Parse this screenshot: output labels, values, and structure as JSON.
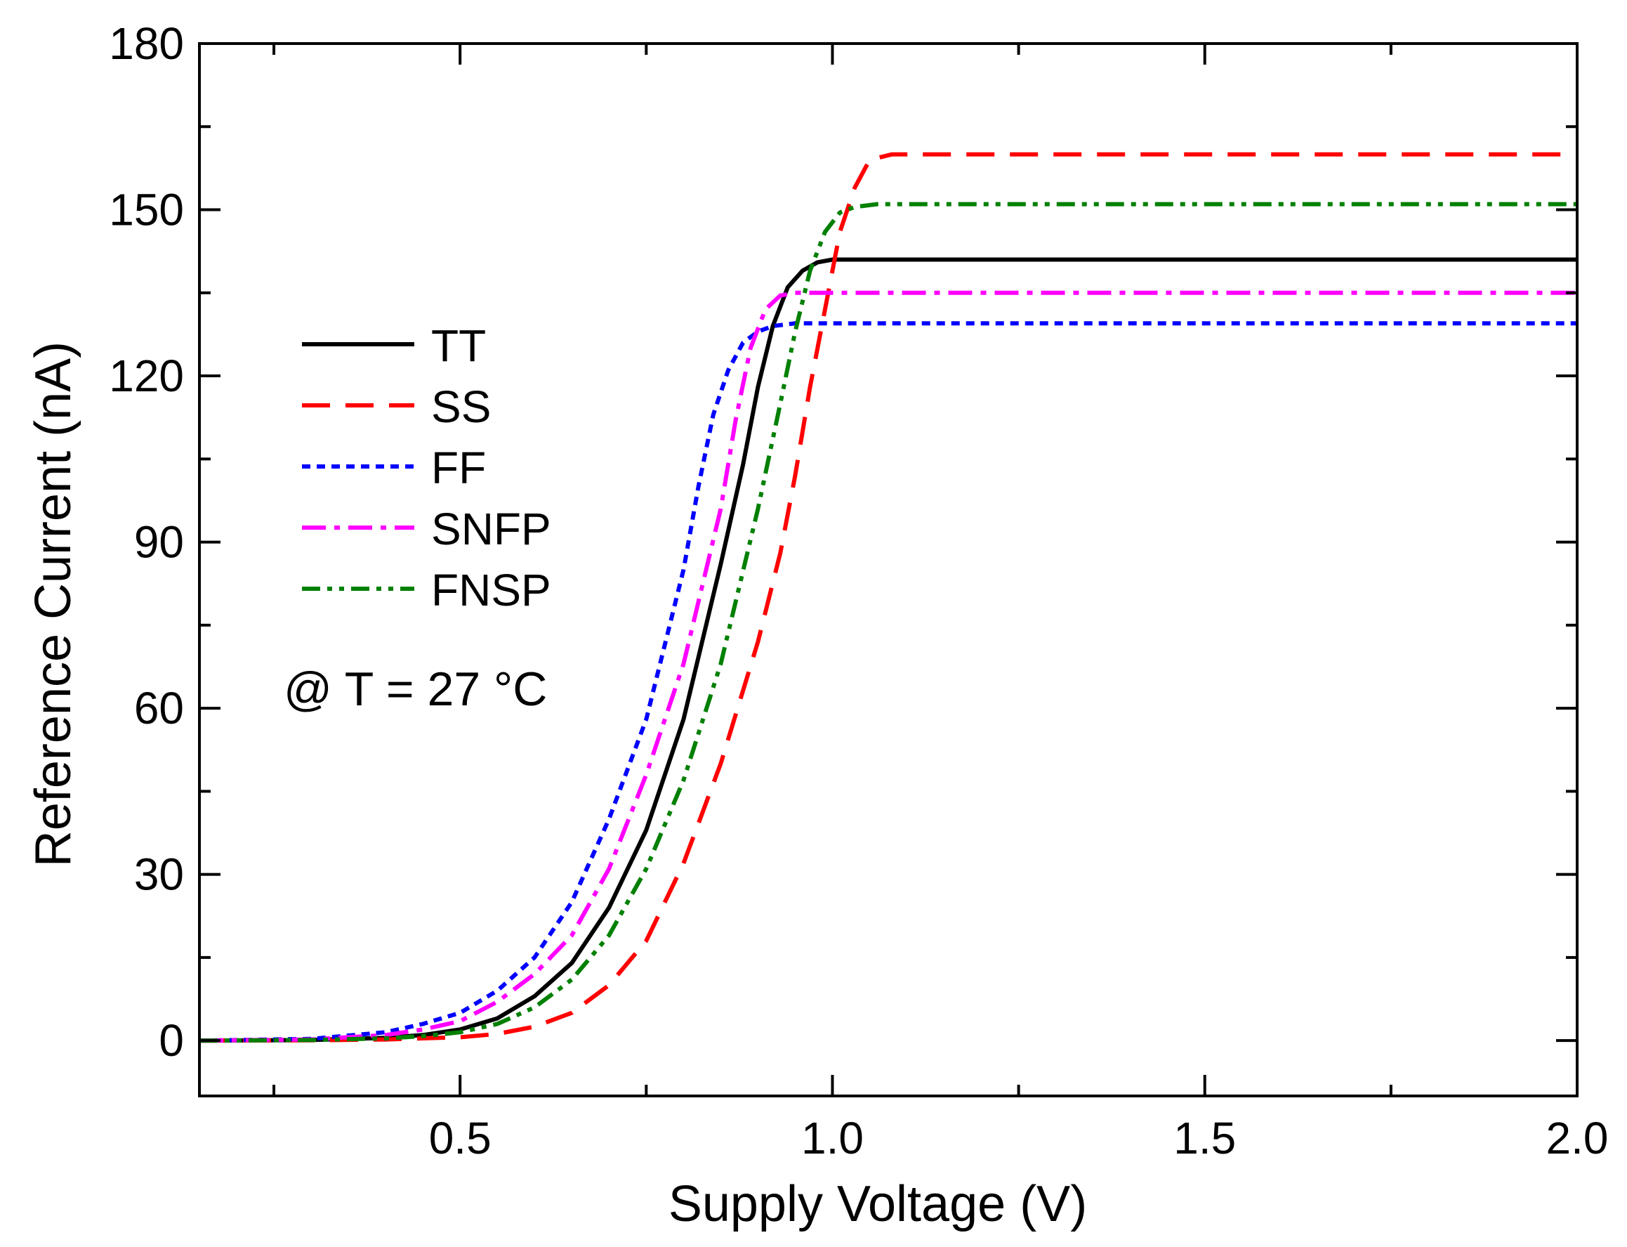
{
  "chart_data": {
    "type": "line",
    "title": "",
    "xlabel": "Supply Voltage (V)",
    "ylabel": "Reference Current (nA)",
    "xlim": [
      0.15,
      2.0
    ],
    "ylim": [
      -10,
      180
    ],
    "xticks": [
      0.5,
      1.0,
      1.5,
      2.0
    ],
    "xtick_labels": [
      "0.5",
      "1.0",
      "1.5",
      "2.0"
    ],
    "yticks": [
      0,
      30,
      60,
      90,
      120,
      150,
      180
    ],
    "ytick_labels": [
      "0",
      "30",
      "60",
      "90",
      "120",
      "150",
      "180"
    ],
    "grid": false,
    "legend_position": "left",
    "annotation": "@ T = 27 °C",
    "series": [
      {
        "name": "TT",
        "color": "#000000",
        "dash": "solid",
        "x": [
          0.15,
          0.3,
          0.4,
          0.45,
          0.5,
          0.55,
          0.6,
          0.65,
          0.7,
          0.75,
          0.8,
          0.85,
          0.88,
          0.9,
          0.92,
          0.94,
          0.96,
          0.98,
          1.0,
          1.05,
          1.2,
          1.5,
          2.0
        ],
        "y": [
          0,
          0.1,
          0.5,
          1,
          2,
          4,
          8,
          14,
          24,
          38,
          58,
          86,
          104,
          118,
          129,
          136,
          139,
          140.5,
          141,
          141,
          141,
          141,
          141
        ]
      },
      {
        "name": "SS",
        "color": "#ff0000",
        "dash": "dashed",
        "x": [
          0.15,
          0.3,
          0.4,
          0.5,
          0.55,
          0.6,
          0.65,
          0.7,
          0.75,
          0.8,
          0.85,
          0.9,
          0.93,
          0.95,
          0.97,
          0.99,
          1.01,
          1.03,
          1.05,
          1.08,
          1.2,
          1.5,
          2.0
        ],
        "y": [
          0,
          0.05,
          0.2,
          0.6,
          1.2,
          2.5,
          5,
          10,
          18,
          32,
          50,
          72,
          88,
          102,
          118,
          132,
          146,
          154,
          159,
          160,
          160,
          160,
          160
        ]
      },
      {
        "name": "FF",
        "color": "#0000ff",
        "dash": "dotted",
        "x": [
          0.15,
          0.3,
          0.4,
          0.45,
          0.5,
          0.55,
          0.6,
          0.65,
          0.7,
          0.75,
          0.8,
          0.82,
          0.84,
          0.86,
          0.88,
          0.9,
          0.92,
          0.95,
          1.0,
          1.2,
          1.5,
          2.0
        ],
        "y": [
          0,
          0.3,
          1.5,
          3,
          5,
          9,
          15,
          25,
          40,
          58,
          85,
          100,
          113,
          121,
          126,
          128,
          129,
          129.5,
          129.5,
          129.5,
          129.5,
          129.5
        ]
      },
      {
        "name": "SNFP",
        "color": "#ff00ff",
        "dash": "dashdot",
        "x": [
          0.15,
          0.3,
          0.4,
          0.45,
          0.5,
          0.55,
          0.6,
          0.65,
          0.7,
          0.75,
          0.8,
          0.85,
          0.87,
          0.89,
          0.91,
          0.93,
          0.95,
          1.0,
          1.2,
          1.5,
          2.0
        ],
        "y": [
          0,
          0.2,
          1,
          2,
          3.5,
          7,
          12,
          19,
          31,
          48,
          68,
          96,
          112,
          125,
          132,
          134.5,
          135,
          135,
          135,
          135,
          135
        ]
      },
      {
        "name": "FNSP",
        "color": "#008000",
        "dash": "dashdotdot",
        "x": [
          0.15,
          0.3,
          0.4,
          0.45,
          0.5,
          0.55,
          0.6,
          0.65,
          0.7,
          0.75,
          0.8,
          0.85,
          0.9,
          0.93,
          0.95,
          0.97,
          0.99,
          1.01,
          1.03,
          1.06,
          1.2,
          1.5,
          2.0
        ],
        "y": [
          0,
          0.1,
          0.4,
          0.8,
          1.5,
          3,
          6,
          11,
          19,
          31,
          47,
          68,
          96,
          115,
          128,
          139,
          146,
          149.5,
          150.5,
          151,
          151,
          151,
          151
        ]
      }
    ]
  }
}
